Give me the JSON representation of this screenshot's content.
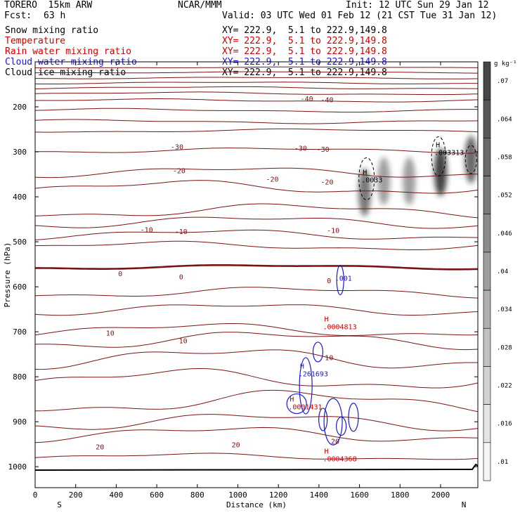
{
  "header": {
    "model": "TORERO  15km ARW",
    "org": "NCAR/MMM",
    "init": "Init: 12 UTC Sun 29 Jan 12",
    "fcst_label": "Fcst:",
    "fcst_value": "63 h",
    "valid": "Valid: 03 UTC Wed 01 Feb 12 (21 CST Tue 31 Jan 12)",
    "fields": [
      {
        "name": "Snow mixing ratio",
        "color": "#000000",
        "xy": "XY= 222.9,  5.1 to 222.9,149.8",
        "xy_color": "#000000"
      },
      {
        "name": "Temperature",
        "color": "#cc0000",
        "xy": "XY= 222.9,  5.1 to 222.9,149.8",
        "xy_color": "#cc0000"
      },
      {
        "name": "Rain water mixing ratio",
        "color": "#cc0000",
        "xy": "XY= 222.9,  5.1 to 222.9,149.8",
        "xy_color": "#cc0000"
      },
      {
        "name": "Cloud water mixing ratio",
        "color": "#1a1acc",
        "xy": "XY= 222.9,  5.1 to 222.9,149.8",
        "xy_color": "#1a1acc"
      },
      {
        "name": "Cloud ice mixing ratio",
        "color": "#000000",
        "xy": "XY= 222.9,  5.1 to 222.9,149.8",
        "xy_color": "#000000"
      }
    ]
  },
  "chart_data": {
    "type": "cross-section contour",
    "xlabel": "Distance (km)",
    "ylabel": "Pressure (hPa)",
    "xlim": [
      0,
      2180
    ],
    "ylim": [
      1050,
      100
    ],
    "x_ticks": [
      0,
      200,
      400,
      600,
      800,
      1000,
      1200,
      1400,
      1600,
      1800,
      2000
    ],
    "y_ticks": [
      200,
      300,
      400,
      500,
      600,
      700,
      800,
      900,
      1000
    ],
    "x_end_labels": {
      "left": "S",
      "right": "N"
    },
    "colors": {
      "temperature": "#7a1414",
      "zero_isotherm": "#7a1414",
      "cloud_water": "#1a1acc",
      "rain_label": "#cc0000",
      "ice_label": "#000000",
      "ground": "#000000"
    },
    "temperature_contours": [
      {
        "level": -40,
        "labels": [
          {
            "x": 1340,
            "p": 183,
            "text": "-40"
          },
          {
            "x": 1440,
            "p": 185,
            "text": "-40"
          }
        ]
      },
      {
        "level": -30,
        "labels": [
          {
            "x": 700,
            "p": 290,
            "text": "-30"
          },
          {
            "x": 1310,
            "p": 293,
            "text": "-30"
          },
          {
            "x": 1420,
            "p": 295,
            "text": "-30"
          }
        ]
      },
      {
        "level": -20,
        "labels": [
          {
            "x": 710,
            "p": 343,
            "text": "-20"
          },
          {
            "x": 1170,
            "p": 362,
            "text": "-20"
          },
          {
            "x": 1440,
            "p": 368,
            "text": "-20"
          }
        ]
      },
      {
        "level": -10,
        "labels": [
          {
            "x": 550,
            "p": 474,
            "text": "-10"
          },
          {
            "x": 720,
            "p": 478,
            "text": "-10"
          },
          {
            "x": 1470,
            "p": 476,
            "text": "-10"
          }
        ]
      },
      {
        "level": 0,
        "labels": [
          {
            "x": 420,
            "p": 572,
            "text": "0"
          },
          {
            "x": 720,
            "p": 579,
            "text": "0"
          },
          {
            "x": 1450,
            "p": 587,
            "text": "0"
          }
        ]
      },
      {
        "level": 10,
        "labels": [
          {
            "x": 370,
            "p": 704,
            "text": "10"
          },
          {
            "x": 730,
            "p": 721,
            "text": "10"
          },
          {
            "x": 1450,
            "p": 758,
            "text": "10"
          }
        ]
      },
      {
        "level": 20,
        "labels": [
          {
            "x": 320,
            "p": 957,
            "text": "20"
          },
          {
            "x": 990,
            "p": 952,
            "text": "20"
          },
          {
            "x": 1480,
            "p": 944,
            "text": "20"
          }
        ]
      }
    ],
    "extrema": [
      {
        "field": "Cloud ice mixing ratio",
        "x": 1630,
        "p": 363,
        "marker": "H",
        "value": ".0033",
        "color": "#000000"
      },
      {
        "field": "Cloud ice mixing ratio",
        "x": 1990,
        "p": 302,
        "marker": "H",
        "value": ".003313",
        "color": "#000000"
      },
      {
        "field": "Cloud water mixing ratio",
        "x": 1500,
        "p": 582,
        "marker": "",
        "value": ".001",
        "color": "#1a1acc"
      },
      {
        "field": "Rain water mixing ratio",
        "x": 1440,
        "p": 690,
        "marker": "H",
        "value": ".0004813",
        "color": "#cc0000"
      },
      {
        "field": "Cloud water mixing ratio",
        "x": 1320,
        "p": 794,
        "marker": "H",
        "value": ".261693",
        "color": "#1a1acc"
      },
      {
        "field": "Rain water mixing ratio",
        "x": 1270,
        "p": 868,
        "marker": "H",
        "value": ".0001431",
        "color": "#cc0000"
      },
      {
        "field": "Rain water mixing ratio",
        "x": 1440,
        "p": 983,
        "marker": "H",
        "value": ".0004368",
        "color": "#cc0000"
      }
    ],
    "snow_shading": [
      {
        "x": 1625,
        "p": 390,
        "intensity": 0.55
      },
      {
        "x": 1720,
        "p": 365,
        "intensity": 0.3
      },
      {
        "x": 1845,
        "p": 365,
        "intensity": 0.3
      },
      {
        "x": 2000,
        "p": 345,
        "intensity": 0.9
      },
      {
        "x": 2150,
        "p": 317,
        "intensity": 0.65
      }
    ],
    "colorbar": {
      "unit": "g kg⁻¹",
      "ticks": [
        ".07",
        ".064",
        ".058",
        ".052",
        ".046",
        ".04",
        ".034",
        ".028",
        ".022",
        ".016",
        ".01"
      ]
    }
  }
}
